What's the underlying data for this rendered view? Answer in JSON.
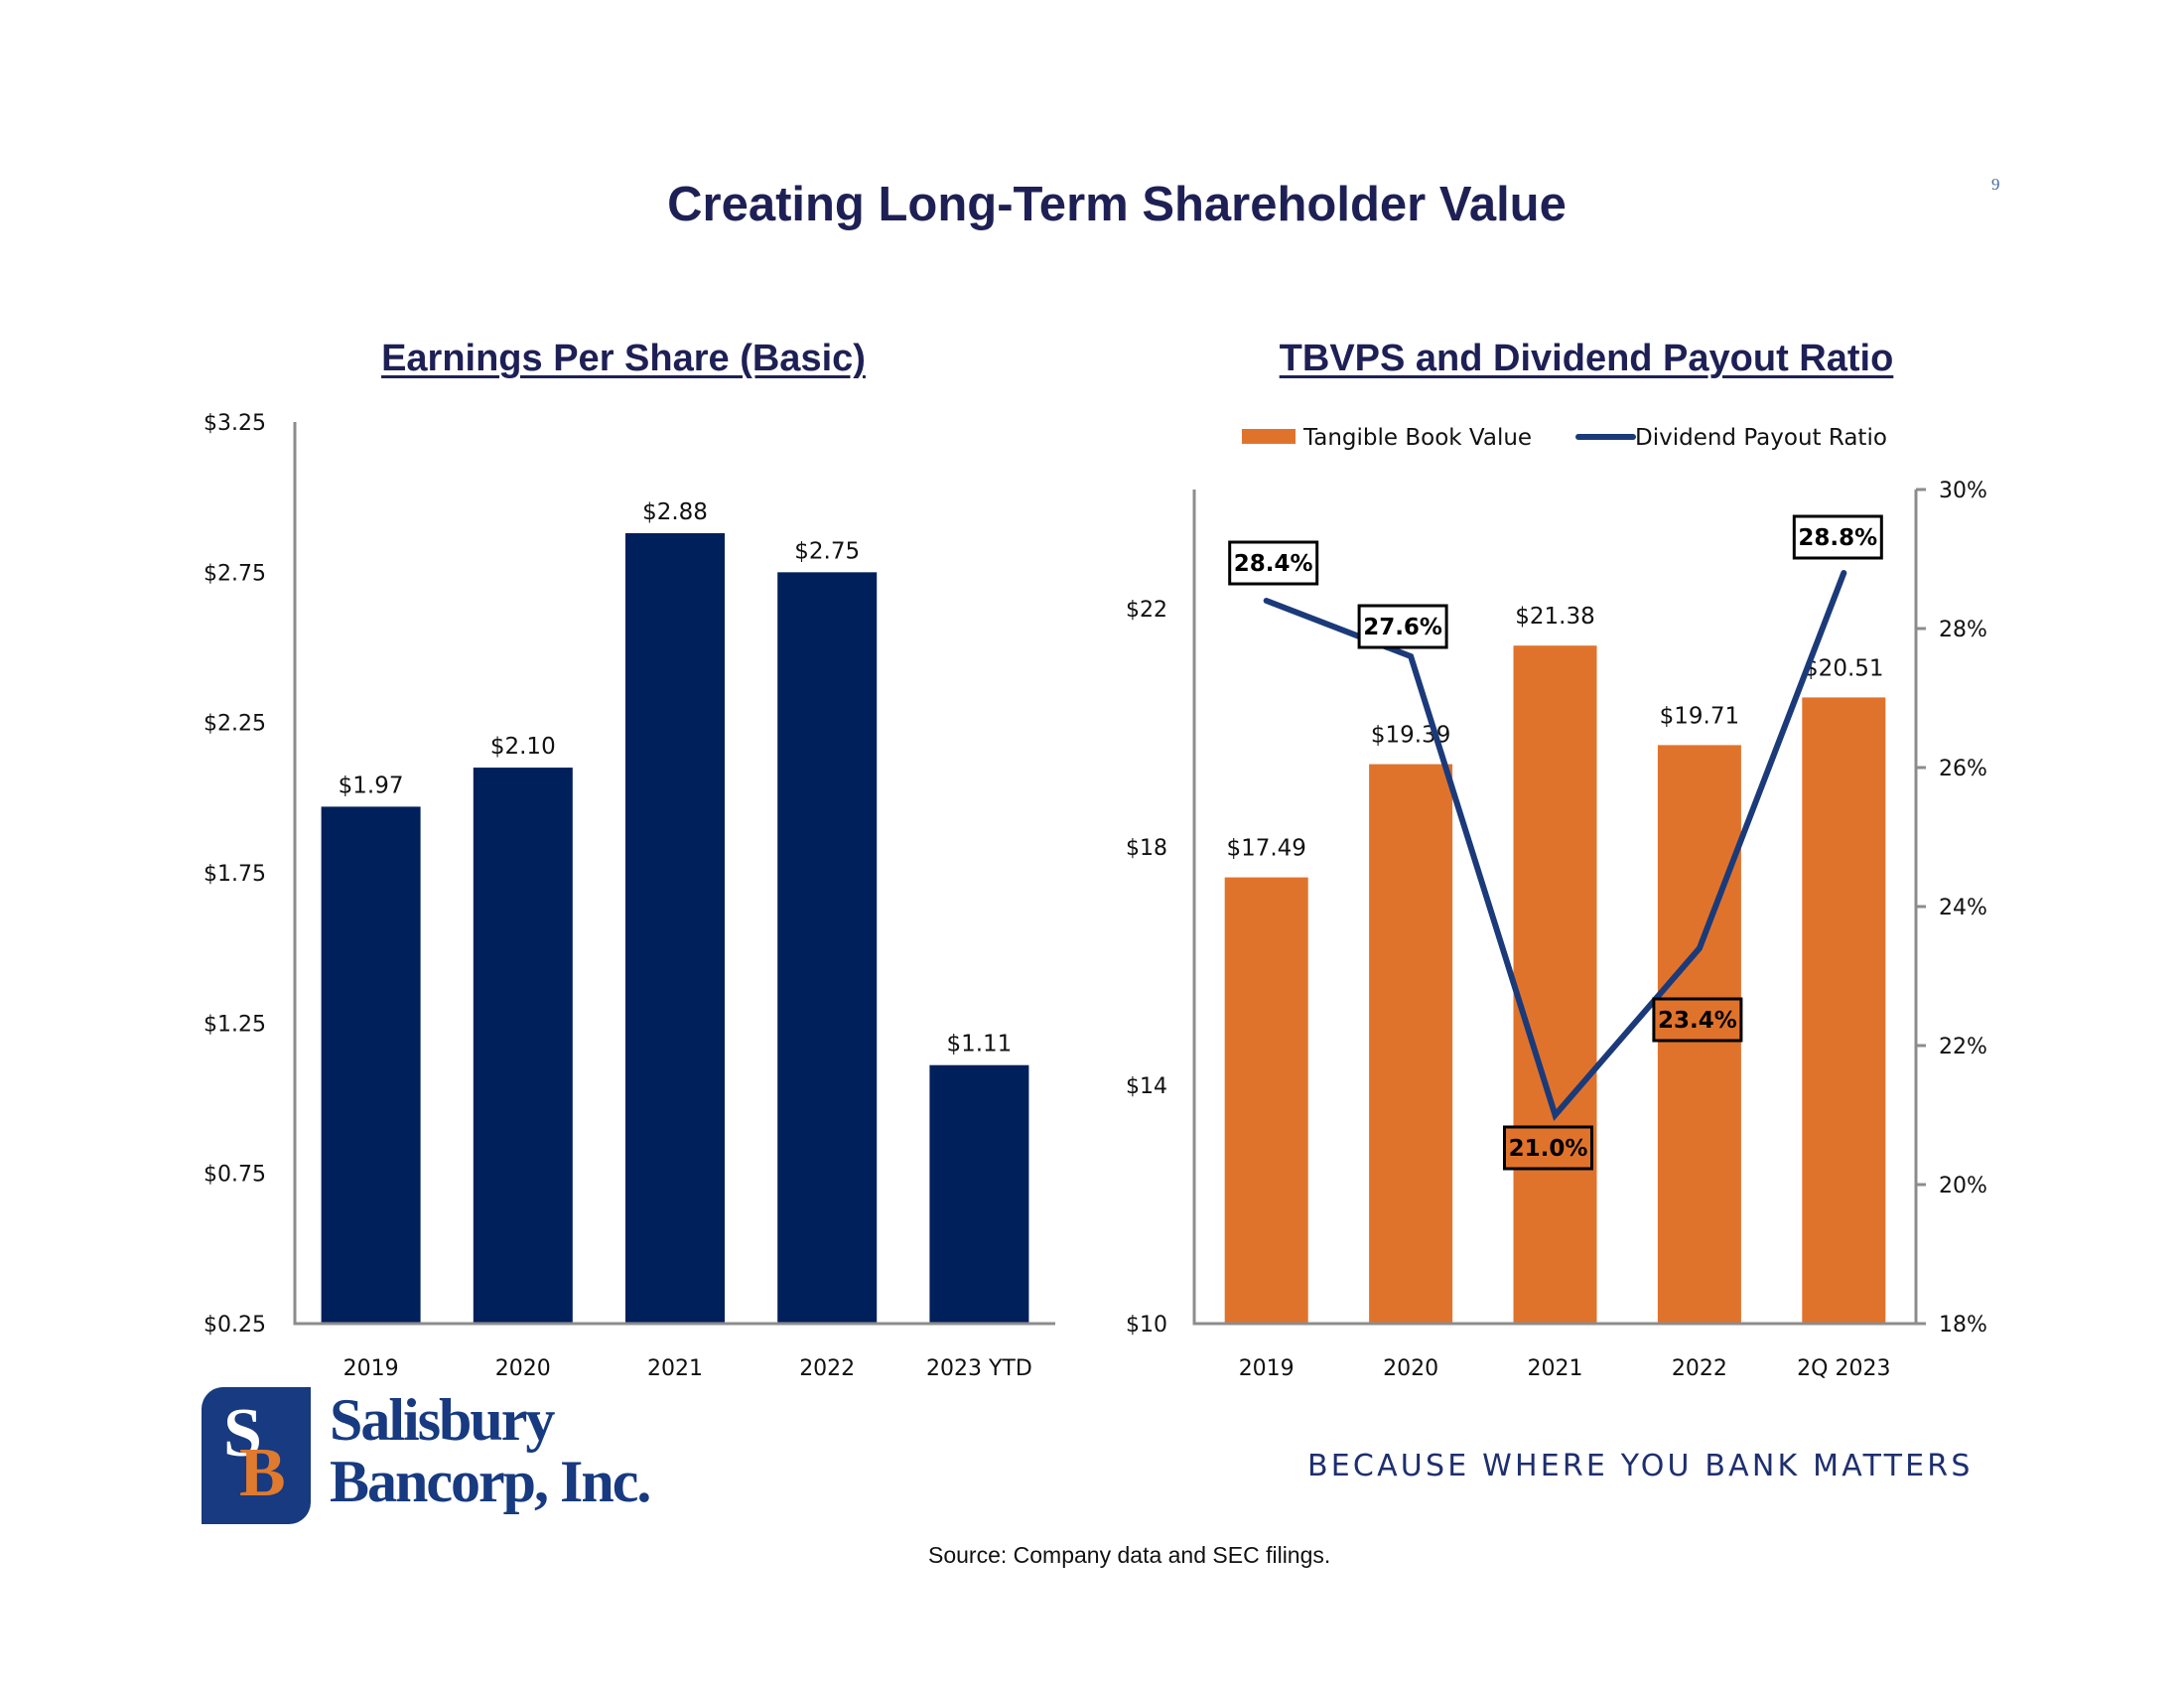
{
  "page": {
    "title": "Creating Long-Term Shareholder Value",
    "page_number": "9",
    "tagline": "BECAUSE WHERE YOU BANK MATTERS",
    "source": "Source: Company data and SEC filings.",
    "brand": {
      "line1": "Salisbury",
      "line2": "Bancorp, Inc.",
      "logo_s": "S",
      "logo_b": "B"
    },
    "colors": {
      "navy": "#00205B",
      "orange": "#E0732C",
      "line": "#1B3A7A",
      "title": "#1E2055",
      "axis": "#8C8C8C"
    }
  },
  "chart_data": [
    {
      "type": "bar",
      "title": "Earnings Per Share (Basic)",
      "categories": [
        "2019",
        "2020",
        "2021",
        "2022",
        "2023 YTD"
      ],
      "values": [
        1.97,
        2.1,
        2.88,
        2.75,
        1.11
      ],
      "value_labels": [
        "$1.97",
        "$2.10",
        "$2.88",
        "$2.75",
        "$1.11"
      ],
      "xlabel": "",
      "ylabel": "",
      "ylim": [
        0.25,
        3.25
      ],
      "yticks": [
        0.25,
        0.75,
        1.25,
        1.75,
        2.25,
        2.75,
        3.25
      ],
      "ytick_labels": [
        "$0.25",
        "$0.75",
        "$1.25",
        "$1.75",
        "$2.25",
        "$2.75",
        "$3.25"
      ],
      "grid": false,
      "color": "#00205B"
    },
    {
      "type": "bar",
      "title": "TBVPS and Dividend Payout Ratio",
      "categories": [
        "2019",
        "2020",
        "2021",
        "2022",
        "2Q 2023"
      ],
      "series": [
        {
          "name": "Tangible Book Value",
          "type": "bar",
          "axis": "left",
          "values": [
            17.49,
            19.39,
            21.38,
            19.71,
            20.51
          ],
          "value_labels": [
            "$17.49",
            "$19.39",
            "$21.38",
            "$19.71",
            "$20.51"
          ],
          "color": "#E0732C"
        },
        {
          "name": "Dividend Payout Ratio",
          "type": "line",
          "axis": "right",
          "values": [
            28.4,
            27.6,
            21.0,
            23.4,
            28.8
          ],
          "value_labels": [
            "28.4%",
            "27.6%",
            "21.0%",
            "23.4%",
            "28.8%"
          ],
          "color": "#1B3A7A"
        }
      ],
      "ylim": [
        10,
        24
      ],
      "yticks": [
        10,
        14,
        18,
        22
      ],
      "ytick_labels": [
        "$10",
        "$14",
        "$18",
        "$22"
      ],
      "y2lim": [
        18,
        30
      ],
      "y2ticks": [
        18,
        20,
        22,
        24,
        26,
        28,
        30
      ],
      "y2tick_labels": [
        "18%",
        "20%",
        "22%",
        "24%",
        "26%",
        "28%",
        "30%"
      ],
      "legend": "top",
      "grid": false
    }
  ]
}
